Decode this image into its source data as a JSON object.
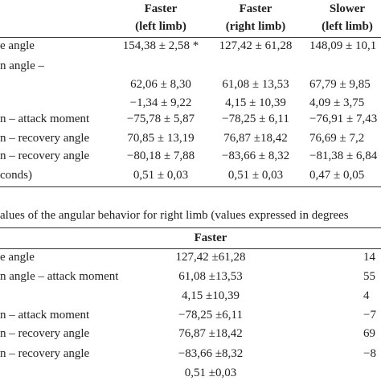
{
  "top_table": {
    "header": [
      [
        "Faster",
        "(left limb)"
      ],
      [
        "Faster",
        "(right limb)"
      ],
      [
        "Slower",
        "(left limb)"
      ]
    ],
    "rows": [
      {
        "label": "e angle",
        "cells": [
          "154,38 ± 2,58 *",
          "127,42 ± 61,28",
          "148,09 ± 10,1"
        ]
      },
      {
        "label": "n angle –",
        "cells": [
          "62,06 ± 8,30",
          "61,08 ± 13,53",
          "67,79 ± 9,85"
        ]
      },
      {
        "label": null,
        "cells": [
          "−1,34 ± 9,22",
          "4,15 ± 10,39",
          "4,09 ± 3,75"
        ]
      },
      {
        "label": "n – attack moment",
        "cells": [
          "−75,78 ± 5,87",
          "−78,25 ± 6,11",
          "−76,91 ± 7,43"
        ]
      },
      {
        "label": "n – recovery angle",
        "cells": [
          "70,85 ± 13,19",
          "76,87 ±18,42",
          "76,69 ± 7,2"
        ]
      },
      {
        "label": "n – recovery angle",
        "cells": [
          "−80,18 ± 7,88",
          "−83,66 ± 8,32",
          "−81,38 ± 6,84"
        ]
      },
      {
        "label": "conds)",
        "cells": [
          "0,51 ± 0,03",
          "0,51 ± 0,03",
          "0,47 ± 0,05"
        ]
      }
    ]
  },
  "caption": "alues of the angular behavior for right limb (values expressed in degrees",
  "bottom_table": {
    "header": [
      "Faster"
    ],
    "rows": [
      {
        "label": "e angle",
        "cells": [
          "127,42 ±61,28",
          "14"
        ]
      },
      {
        "label": "n angle – attack moment",
        "cells": [
          "61,08 ±13,53",
          "55"
        ]
      },
      {
        "label": null,
        "cells": [
          "4,15 ±10,39",
          "4"
        ]
      },
      {
        "label": "n – attack moment",
        "cells": [
          "−78,25 ±6,11",
          "−7"
        ]
      },
      {
        "label": "n – recovery angle",
        "cells": [
          "76,87 ±18,42",
          "69"
        ]
      },
      {
        "label": "n – recovery angle",
        "cells": [
          "−83,66 ±8,32",
          "−8"
        ]
      },
      {
        "label": null,
        "cells": [
          "0,51 ±0,03",
          null
        ]
      }
    ]
  }
}
